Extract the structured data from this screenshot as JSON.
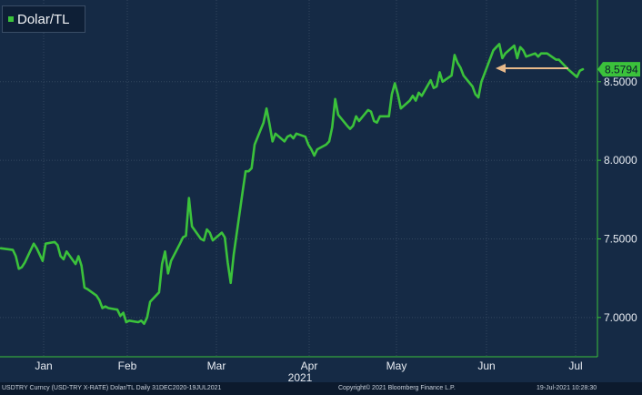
{
  "legend": {
    "label": "Dolar/TL",
    "color": "#3bc23b"
  },
  "last_value_badge": {
    "text": "8.5794",
    "color": "#3bc23b"
  },
  "arrow_color": "#e8b98a",
  "footer": {
    "left": "USDTRY Curncy (USD-TRY X-RATE) Dolar/TL  Daily 31DEC2020-19JUL2021",
    "center": "Copyright© 2021 Bloomberg Finance L.P.",
    "right": "19-Jul-2021 10:28:30"
  },
  "chart_data": {
    "type": "line",
    "x_tick_labels": [
      "Jan",
      "Feb",
      "Mar",
      "Apr",
      "May",
      "Jun",
      "Jul"
    ],
    "x_year_label": "2021",
    "y_ticks": [
      "7.0000",
      "7.5000",
      "8.0000",
      "8.5000"
    ],
    "ylim": [
      6.75,
      9.02
    ],
    "grid": true,
    "legend_position": "top-left",
    "series": [
      {
        "name": "Dolar/TL",
        "color": "#3bc23b",
        "points": [
          [
            "2020-12-31",
            7.44
          ],
          [
            "2021-01-04",
            7.43
          ],
          [
            "2021-01-05",
            7.39
          ],
          [
            "2021-01-06",
            7.31
          ],
          [
            "2021-01-07",
            7.32
          ],
          [
            "2021-01-08",
            7.35
          ],
          [
            "2021-01-11",
            7.47
          ],
          [
            "2021-01-12",
            7.44
          ],
          [
            "2021-01-13",
            7.4
          ],
          [
            "2021-01-14",
            7.36
          ],
          [
            "2021-01-15",
            7.47
          ],
          [
            "2021-01-18",
            7.48
          ],
          [
            "2021-01-19",
            7.46
          ],
          [
            "2021-01-20",
            7.39
          ],
          [
            "2021-01-21",
            7.37
          ],
          [
            "2021-01-22",
            7.42
          ],
          [
            "2021-01-25",
            7.34
          ],
          [
            "2021-01-26",
            7.39
          ],
          [
            "2021-01-27",
            7.33
          ],
          [
            "2021-01-28",
            7.19
          ],
          [
            "2021-01-29",
            7.18
          ],
          [
            "2021-02-01",
            7.14
          ],
          [
            "2021-02-02",
            7.11
          ],
          [
            "2021-02-03",
            7.06
          ],
          [
            "2021-02-04",
            7.07
          ],
          [
            "2021-02-05",
            7.06
          ],
          [
            "2021-02-08",
            7.05
          ],
          [
            "2021-02-09",
            7.01
          ],
          [
            "2021-02-10",
            7.03
          ],
          [
            "2021-02-11",
            6.97
          ],
          [
            "2021-02-12",
            6.98
          ],
          [
            "2021-02-15",
            6.97
          ],
          [
            "2021-02-16",
            6.98
          ],
          [
            "2021-02-17",
            6.96
          ],
          [
            "2021-02-18",
            7.0
          ],
          [
            "2021-02-19",
            7.1
          ],
          [
            "2021-02-22",
            7.16
          ],
          [
            "2021-02-23",
            7.34
          ],
          [
            "2021-02-24",
            7.42
          ],
          [
            "2021-02-25",
            7.28
          ],
          [
            "2021-02-26",
            7.36
          ],
          [
            "2021-03-01",
            7.47
          ],
          [
            "2021-03-02",
            7.51
          ],
          [
            "2021-03-03",
            7.52
          ],
          [
            "2021-03-04",
            7.76
          ],
          [
            "2021-03-05",
            7.58
          ],
          [
            "2021-03-08",
            7.5
          ],
          [
            "2021-03-09",
            7.49
          ],
          [
            "2021-03-10",
            7.56
          ],
          [
            "2021-03-11",
            7.54
          ],
          [
            "2021-03-12",
            7.49
          ],
          [
            "2021-03-15",
            7.54
          ],
          [
            "2021-03-16",
            7.51
          ],
          [
            "2021-03-17",
            7.35
          ],
          [
            "2021-03-18",
            7.22
          ],
          [
            "2021-03-19",
            7.4
          ],
          [
            "2021-03-22",
            7.8
          ],
          [
            "2021-03-23",
            7.93
          ],
          [
            "2021-03-24",
            7.93
          ],
          [
            "2021-03-25",
            7.95
          ],
          [
            "2021-03-26",
            8.1
          ],
          [
            "2021-03-29",
            8.24
          ],
          [
            "2021-03-30",
            8.33
          ],
          [
            "2021-03-31",
            8.23
          ],
          [
            "2021-04-01",
            8.12
          ],
          [
            "2021-04-02",
            8.17
          ],
          [
            "2021-04-05",
            8.12
          ],
          [
            "2021-04-06",
            8.15
          ],
          [
            "2021-04-07",
            8.16
          ],
          [
            "2021-04-08",
            8.14
          ],
          [
            "2021-04-09",
            8.17
          ],
          [
            "2021-04-12",
            8.15
          ],
          [
            "2021-04-13",
            8.1
          ],
          [
            "2021-04-14",
            8.07
          ],
          [
            "2021-04-15",
            8.03
          ],
          [
            "2021-04-16",
            8.07
          ],
          [
            "2021-04-19",
            8.1
          ],
          [
            "2021-04-20",
            8.12
          ],
          [
            "2021-04-21",
            8.21
          ],
          [
            "2021-04-22",
            8.39
          ],
          [
            "2021-04-23",
            8.29
          ],
          [
            "2021-04-26",
            8.22
          ],
          [
            "2021-04-27",
            8.2
          ],
          [
            "2021-04-28",
            8.22
          ],
          [
            "2021-04-29",
            8.28
          ],
          [
            "2021-04-30",
            8.25
          ],
          [
            "2021-05-03",
            8.32
          ],
          [
            "2021-05-04",
            8.31
          ],
          [
            "2021-05-05",
            8.25
          ],
          [
            "2021-05-06",
            8.24
          ],
          [
            "2021-05-07",
            8.28
          ],
          [
            "2021-05-10",
            8.28
          ],
          [
            "2021-05-11",
            8.42
          ],
          [
            "2021-05-12",
            8.49
          ],
          [
            "2021-05-13",
            8.42
          ],
          [
            "2021-05-14",
            8.33
          ],
          [
            "2021-05-17",
            8.38
          ],
          [
            "2021-05-18",
            8.41
          ],
          [
            "2021-05-19",
            8.38
          ],
          [
            "2021-05-20",
            8.43
          ],
          [
            "2021-05-21",
            8.41
          ],
          [
            "2021-05-24",
            8.51
          ],
          [
            "2021-05-25",
            8.46
          ],
          [
            "2021-05-26",
            8.47
          ],
          [
            "2021-05-27",
            8.56
          ],
          [
            "2021-05-28",
            8.5
          ],
          [
            "2021-05-31",
            8.54
          ],
          [
            "2021-06-01",
            8.67
          ],
          [
            "2021-06-02",
            8.62
          ],
          [
            "2021-06-03",
            8.59
          ],
          [
            "2021-06-04",
            8.54
          ],
          [
            "2021-06-07",
            8.47
          ],
          [
            "2021-06-08",
            8.42
          ],
          [
            "2021-06-09",
            8.4
          ],
          [
            "2021-06-10",
            8.5
          ],
          [
            "2021-06-11",
            8.55
          ],
          [
            "2021-06-14",
            8.7
          ],
          [
            "2021-06-15",
            8.72
          ],
          [
            "2021-06-16",
            8.74
          ],
          [
            "2021-06-17",
            8.65
          ],
          [
            "2021-06-18",
            8.68
          ],
          [
            "2021-06-21",
            8.73
          ],
          [
            "2021-06-22",
            8.65
          ],
          [
            "2021-06-23",
            8.72
          ],
          [
            "2021-06-24",
            8.7
          ],
          [
            "2021-06-25",
            8.66
          ],
          [
            "2021-06-28",
            8.68
          ],
          [
            "2021-06-29",
            8.66
          ],
          [
            "2021-06-30",
            8.68
          ],
          [
            "2021-07-01",
            8.68
          ],
          [
            "2021-07-02",
            8.68
          ],
          [
            "2021-07-05",
            8.64
          ],
          [
            "2021-07-06",
            8.64
          ],
          [
            "2021-07-07",
            8.62
          ],
          [
            "2021-07-08",
            8.6
          ],
          [
            "2021-07-09",
            8.58
          ],
          [
            "2021-07-12",
            8.53
          ],
          [
            "2021-07-13",
            8.57
          ],
          [
            "2021-07-14",
            8.5794
          ]
        ]
      }
    ]
  }
}
